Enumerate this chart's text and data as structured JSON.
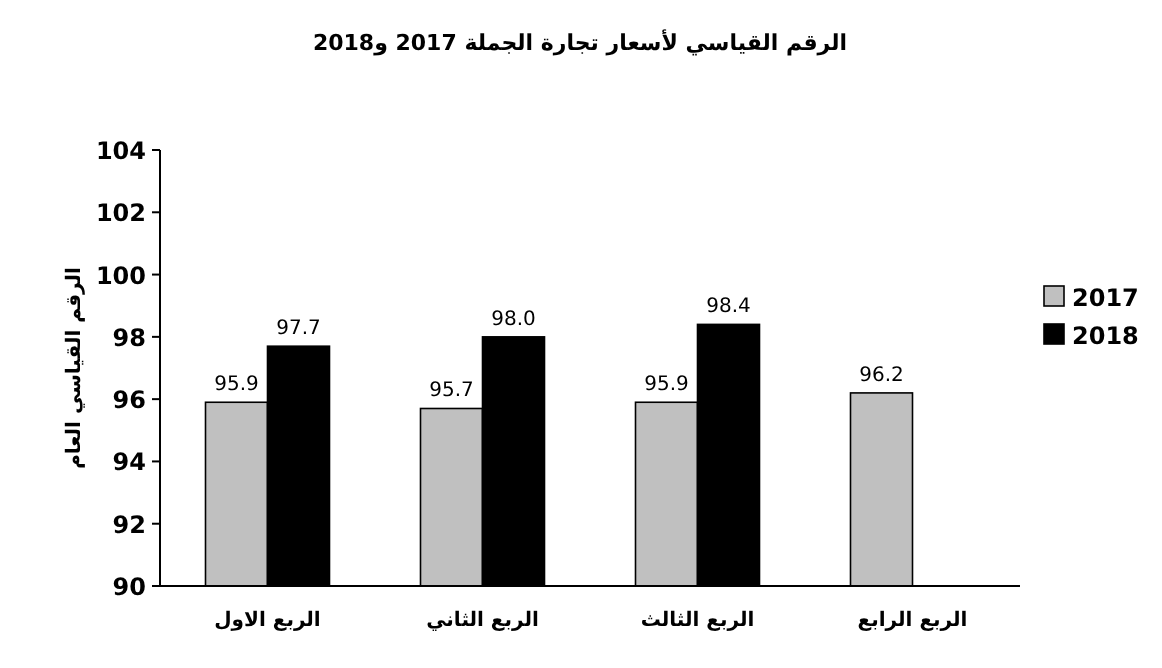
{
  "chart_data": {
    "type": "bar",
    "title": "الرقم القياسي لأسعار تجارة الجملة 2017 و2018",
    "ylabel": "الرقم القياسي العام",
    "categories": [
      "الربع الاول",
      "الربع الثاني",
      "الربع الثالث",
      "الربع الرابع"
    ],
    "series": [
      {
        "name": "2017",
        "color": "#c0c0c0",
        "values": [
          95.9,
          95.7,
          95.9,
          96.2
        ],
        "value_labels": [
          "95.9",
          "95.7",
          "95.9",
          "96.2"
        ]
      },
      {
        "name": "2018",
        "color": "#000000",
        "values": [
          97.7,
          98.0,
          98.4,
          null
        ],
        "value_labels": [
          "97.7",
          "98.0",
          "98.4",
          null
        ]
      }
    ],
    "ylim": [
      90,
      104
    ],
    "yticks": [
      90,
      92,
      94,
      96,
      98,
      100,
      102,
      104
    ],
    "legend": "right"
  }
}
